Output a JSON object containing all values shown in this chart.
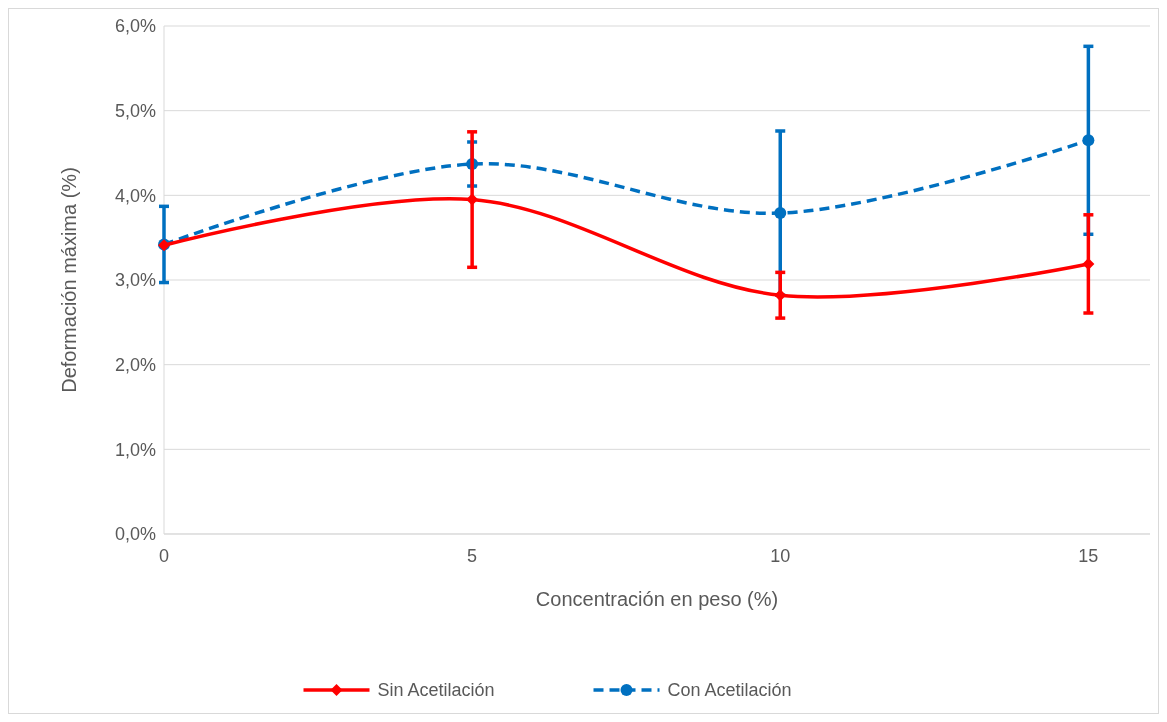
{
  "chart_data": {
    "type": "line",
    "xlabel": "Concentración en peso (%)",
    "ylabel": "Deformación máxima (%)",
    "x": [
      0,
      5,
      10,
      15
    ],
    "xlim": [
      0,
      16
    ],
    "xticks": [
      0,
      5,
      10,
      15
    ],
    "ylim": [
      0,
      6
    ],
    "yticks": [
      {
        "value": 0,
        "label": "0,0%"
      },
      {
        "value": 1,
        "label": "1,0%"
      },
      {
        "value": 2,
        "label": "2,0%"
      },
      {
        "value": 3,
        "label": "3,0%"
      },
      {
        "value": 4,
        "label": "4,0%"
      },
      {
        "value": 5,
        "label": "5,0%"
      },
      {
        "value": 6,
        "label": "6,0%"
      }
    ],
    "grid": "y",
    "legend": "bottom",
    "series": [
      {
        "name": "Sin Acetilación",
        "color": "#ff0000",
        "values": [
          3.41,
          3.95,
          2.82,
          3.19
        ],
        "errors": [
          null,
          0.8,
          0.27,
          0.58
        ],
        "marker": "diamond",
        "line_style": "solid"
      },
      {
        "name": "Con Acetilación",
        "color": "#0070c0",
        "values": [
          3.42,
          4.37,
          3.79,
          4.65
        ],
        "errors": [
          0.45,
          0.26,
          0.97,
          1.11
        ],
        "marker": "circle",
        "line_style": "dashed"
      }
    ]
  }
}
